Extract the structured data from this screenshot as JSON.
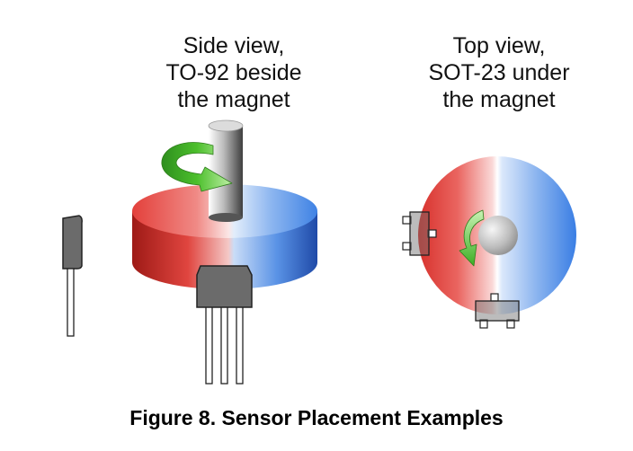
{
  "side_view": {
    "title_lines": [
      "Side view,",
      "TO-92 beside",
      "the magnet"
    ]
  },
  "top_view": {
    "title_lines": [
      "Top view,",
      "SOT-23 under",
      "the magnet"
    ]
  },
  "caption": "Figure 8. Sensor Placement Examples",
  "colors": {
    "north_pole": "#e03a3a",
    "south_pole": "#3a7fe0",
    "rotation_arrow": "#4cbf2c",
    "sensor_body": "#6b6b6b"
  },
  "icons": [
    "rotation-arrow-icon",
    "to-92-sensor-icon",
    "sot-23-sensor-icon"
  ]
}
